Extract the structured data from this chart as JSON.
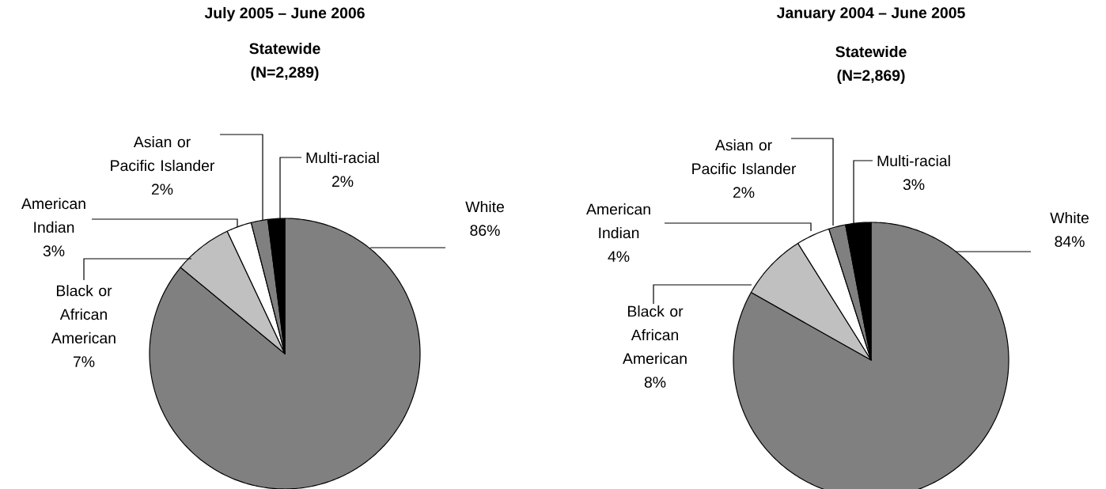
{
  "chart_data": [
    {
      "type": "pie",
      "title": "July 2005 – June 2006",
      "subtitle": "Statewide (N=2,289)",
      "categories": [
        "White",
        "Black or African American",
        "American Indian",
        "Asian or Pacific Islander",
        "Multi-racial"
      ],
      "values": [
        86,
        7,
        3,
        2,
        2
      ],
      "value_labels": [
        "86%",
        "7%",
        "3%",
        "2%",
        "2%"
      ],
      "colors": [
        "#808080",
        "#c0c0c0",
        "#ffffff",
        "#808080",
        "#000000"
      ]
    },
    {
      "type": "pie",
      "title": "January 2004 – June 2005",
      "subtitle": "Statewide (N=2,869)",
      "categories": [
        "White",
        "Black or African American",
        "American Indian",
        "Asian or Pacific Islander",
        "Multi-racial"
      ],
      "values": [
        84,
        8,
        4,
        2,
        3
      ],
      "value_labels": [
        "84%",
        "8%",
        "4%",
        "2%",
        "3%"
      ],
      "colors": [
        "#808080",
        "#c0c0c0",
        "#ffffff",
        "#808080",
        "#000000"
      ]
    }
  ]
}
